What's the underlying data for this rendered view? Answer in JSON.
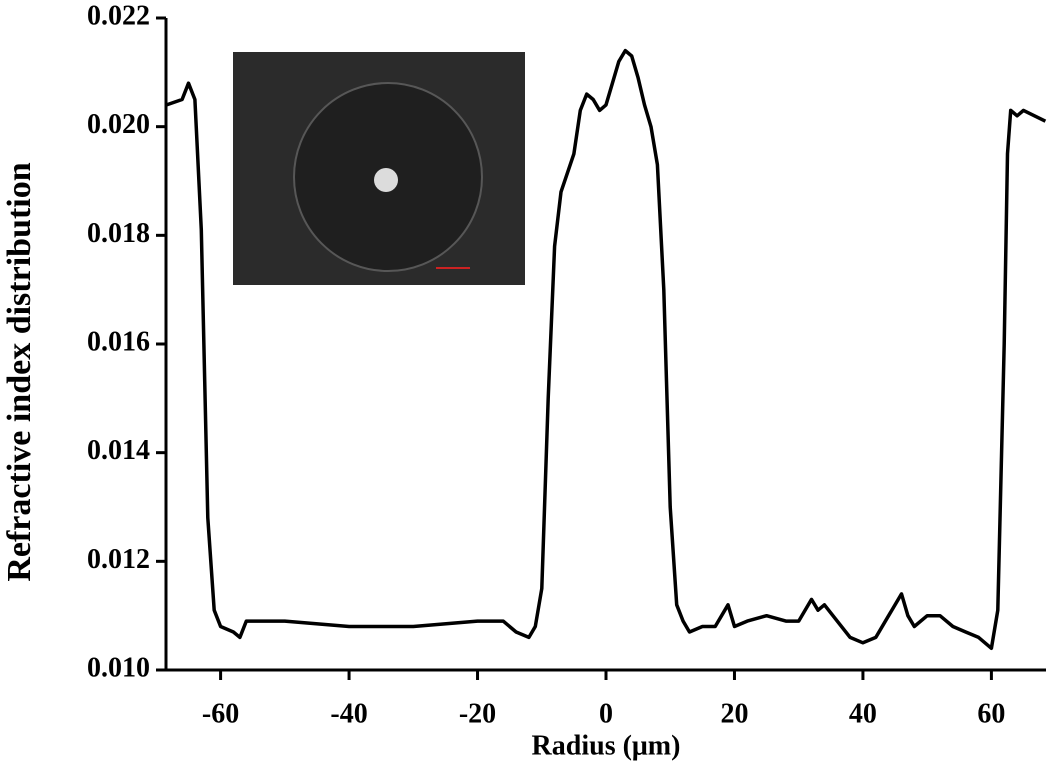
{
  "chart_data": {
    "type": "line",
    "xlabel": "Radius (μm)",
    "ylabel": "Refractive index distribution",
    "x": [
      -68.4,
      -66,
      -65,
      -64,
      -63,
      -62,
      -61,
      -60,
      -58,
      -57,
      -56,
      -50,
      -40,
      -30,
      -20,
      -16,
      -14,
      -12,
      -11,
      -10,
      -9,
      -8,
      -7,
      -5,
      -4,
      -3,
      -2,
      -1,
      0,
      1,
      2,
      3,
      4,
      5,
      6,
      7,
      8,
      9,
      10,
      11,
      12,
      13,
      15,
      17,
      19,
      20,
      22,
      25,
      28,
      30,
      32,
      33,
      34,
      36,
      38,
      40,
      42,
      44,
      46,
      47,
      48,
      50,
      52,
      54,
      56,
      58,
      60,
      61,
      62,
      62.5,
      63,
      64,
      65,
      68.4
    ],
    "series": [
      {
        "name": "Refractive index",
        "color": "#000000",
        "values": [
          0.0204,
          0.0205,
          0.0208,
          0.0205,
          0.0181,
          0.0128,
          0.0111,
          0.0108,
          0.0107,
          0.0106,
          0.0109,
          0.0109,
          0.0108,
          0.0108,
          0.0109,
          0.0109,
          0.0107,
          0.0106,
          0.0108,
          0.0115,
          0.015,
          0.0178,
          0.0188,
          0.0195,
          0.0203,
          0.0206,
          0.0205,
          0.0203,
          0.0204,
          0.0208,
          0.0212,
          0.0214,
          0.0213,
          0.0209,
          0.0204,
          0.02,
          0.0193,
          0.017,
          0.013,
          0.0112,
          0.0109,
          0.0107,
          0.0108,
          0.0108,
          0.0112,
          0.0108,
          0.0109,
          0.011,
          0.0109,
          0.0109,
          0.0113,
          0.0111,
          0.0112,
          0.0109,
          0.0106,
          0.0105,
          0.0106,
          0.011,
          0.0114,
          0.011,
          0.0108,
          0.011,
          0.011,
          0.0108,
          0.0107,
          0.0106,
          0.0104,
          0.0111,
          0.016,
          0.0195,
          0.0203,
          0.0202,
          0.0203,
          0.0201
        ]
      }
    ],
    "xlim": [
      -68.5,
      68.5
    ],
    "xticks": [
      -60,
      -40,
      -20,
      0,
      20,
      40,
      60
    ],
    "ylim": [
      0.01,
      0.022
    ],
    "yticks": [
      {
        "value": 0.01,
        "label": "0.010"
      },
      0.012,
      0.014,
      0.016,
      0.018,
      {
        "value": 0.02,
        "label": "0.020"
      },
      0.022
    ]
  }
}
